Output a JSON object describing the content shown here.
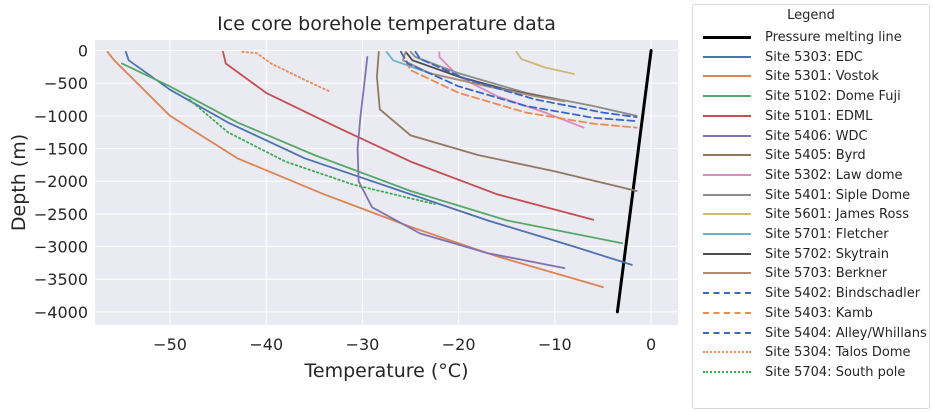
{
  "chart_data": {
    "type": "line",
    "title": "Ice core borehole temperature data",
    "xlabel": "Temperature (°C)",
    "ylabel": "Depth (m)",
    "xlim": [
      -57.8,
      2.8
    ],
    "ylim": [
      -4200,
      160
    ],
    "xticks": [
      -50,
      -40,
      -30,
      -20,
      -10,
      0
    ],
    "xtick_labels": [
      "−50",
      "−40",
      "−30",
      "−20",
      "−10",
      "0"
    ],
    "yticks": [
      0,
      -500,
      -1000,
      -1500,
      -2000,
      -2500,
      -3000,
      -3500,
      -4000
    ],
    "ytick_labels": [
      "0",
      "−500",
      "−1000",
      "−1500",
      "−2000",
      "−2500",
      "−3000",
      "−3500",
      "−4000"
    ],
    "grid": true,
    "legend": {
      "title": "Legend",
      "placement": "outside-right"
    },
    "series": [
      {
        "name": "Pressure melting line",
        "color": "#000000",
        "style": "solid",
        "bold": true,
        "points": [
          [
            0,
            0
          ],
          [
            -3.5,
            -4000
          ]
        ]
      },
      {
        "name": "Site 5303: EDC",
        "color": "#4c72b0",
        "style": "solid",
        "points": [
          [
            -54.6,
            -20
          ],
          [
            -54.3,
            -150
          ],
          [
            -50,
            -600
          ],
          [
            -44,
            -1100
          ],
          [
            -36,
            -1650
          ],
          [
            -26,
            -2150
          ],
          [
            -17,
            -2600
          ],
          [
            -8,
            -3000
          ],
          [
            -2,
            -3280
          ]
        ]
      },
      {
        "name": "Site 5301: Vostok",
        "color": "#dd8452",
        "style": "solid",
        "points": [
          [
            -56.5,
            -20
          ],
          [
            -55.8,
            -150
          ],
          [
            -50,
            -1000
          ],
          [
            -43,
            -1650
          ],
          [
            -34,
            -2200
          ],
          [
            -25,
            -2700
          ],
          [
            -16,
            -3150
          ],
          [
            -5,
            -3620
          ]
        ]
      },
      {
        "name": "Site 5102: Dome Fuji",
        "color": "#55a868",
        "style": "solid",
        "points": [
          [
            -55,
            -200
          ],
          [
            -50,
            -550
          ],
          [
            -43,
            -1100
          ],
          [
            -35,
            -1600
          ],
          [
            -25,
            -2150
          ],
          [
            -15,
            -2600
          ],
          [
            -3,
            -2950
          ]
        ]
      },
      {
        "name": "Site 5101: EDML",
        "color": "#c44e52",
        "style": "solid",
        "points": [
          [
            -44.5,
            -20
          ],
          [
            -44.2,
            -200
          ],
          [
            -40,
            -650
          ],
          [
            -33,
            -1150
          ],
          [
            -25,
            -1700
          ],
          [
            -16,
            -2200
          ],
          [
            -6,
            -2590
          ]
        ]
      },
      {
        "name": "Site 5406: WDC",
        "color": "#8172b3",
        "style": "solid",
        "points": [
          [
            -29.5,
            -100
          ],
          [
            -29.8,
            -500
          ],
          [
            -30.2,
            -1000
          ],
          [
            -30.5,
            -1500
          ],
          [
            -30.4,
            -2000
          ],
          [
            -29,
            -2400
          ],
          [
            -24,
            -2800
          ],
          [
            -17,
            -3100
          ],
          [
            -9,
            -3330
          ]
        ]
      },
      {
        "name": "Site 5405: Byrd",
        "color": "#937860",
        "style": "solid",
        "points": [
          [
            -28.3,
            -20
          ],
          [
            -28.5,
            -400
          ],
          [
            -28.2,
            -900
          ],
          [
            -25,
            -1300
          ],
          [
            -18,
            -1600
          ],
          [
            -10,
            -1850
          ],
          [
            -1.5,
            -2150
          ]
        ]
      },
      {
        "name": "Site 5302: Law dome",
        "color": "#da8bc3",
        "style": "solid",
        "points": [
          [
            -22,
            -30
          ],
          [
            -22,
            -100
          ],
          [
            -20,
            -400
          ],
          [
            -16,
            -700
          ],
          [
            -11,
            -950
          ],
          [
            -7,
            -1180
          ]
        ]
      },
      {
        "name": "Site 5401: Siple Dome",
        "color": "#8c8c8c",
        "style": "solid",
        "points": [
          [
            -25,
            -20
          ],
          [
            -24.5,
            -100
          ],
          [
            -20,
            -350
          ],
          [
            -13,
            -650
          ],
          [
            -6,
            -850
          ],
          [
            -1.5,
            -1000
          ]
        ]
      },
      {
        "name": "Site 5601: James Ross",
        "color": "#ccb974",
        "style": "solid",
        "points": [
          [
            -14,
            -20
          ],
          [
            -13.5,
            -130
          ],
          [
            -11,
            -260
          ],
          [
            -8,
            -360
          ]
        ]
      },
      {
        "name": "Site 5701: Fletcher",
        "color": "#64b5cd",
        "style": "solid",
        "points": [
          [
            -27.5,
            -20
          ],
          [
            -26.8,
            -150
          ],
          [
            -23,
            -350
          ],
          [
            -17,
            -550
          ],
          [
            -12,
            -700
          ]
        ]
      },
      {
        "name": "Site 5702: Skytrain",
        "color": "#4d4d4d",
        "style": "solid",
        "points": [
          [
            -25.5,
            -20
          ],
          [
            -24.8,
            -150
          ],
          [
            -20,
            -400
          ],
          [
            -15,
            -600
          ],
          [
            -10,
            -750
          ]
        ]
      },
      {
        "name": "Site 5703: Berkner",
        "color": "#b08b75",
        "style": "solid",
        "points": [
          [
            -25.5,
            -20
          ],
          [
            -25.8,
            -150
          ],
          [
            -23,
            -350
          ],
          [
            -17,
            -550
          ],
          [
            -12,
            -700
          ],
          [
            -9,
            -780
          ]
        ]
      },
      {
        "name": "Site 5402: Bindschadler",
        "color": "#3a69c4",
        "style": "dashed",
        "points": [
          [
            -24.5,
            -20
          ],
          [
            -24,
            -130
          ],
          [
            -19,
            -450
          ],
          [
            -12,
            -750
          ],
          [
            -5,
            -950
          ],
          [
            -1.5,
            -1020
          ]
        ]
      },
      {
        "name": "Site 5403: Kamb",
        "color": "#ed8a4e",
        "style": "dashed",
        "points": [
          [
            -26,
            -20
          ],
          [
            -25,
            -300
          ],
          [
            -20,
            -650
          ],
          [
            -13,
            -950
          ],
          [
            -6,
            -1120
          ],
          [
            -1.5,
            -1180
          ]
        ]
      },
      {
        "name": "Site 5404: Alley/Whillans",
        "color": "#3a69c4",
        "style": "dashed",
        "points": [
          [
            -26,
            -20
          ],
          [
            -25.3,
            -200
          ],
          [
            -20,
            -550
          ],
          [
            -13,
            -850
          ],
          [
            -6,
            -1030
          ],
          [
            -1.5,
            -1080
          ]
        ]
      },
      {
        "name": "Site 5304: Talos Dome",
        "color": "#ed8a4e",
        "style": "dotted",
        "points": [
          [
            -42.5,
            -20
          ],
          [
            -41,
            -40
          ],
          [
            -39.5,
            -200
          ],
          [
            -36,
            -450
          ],
          [
            -33.5,
            -620
          ]
        ]
      },
      {
        "name": "Site 5704: South pole",
        "color": "#3bab4f",
        "style": "dotted",
        "points": [
          [
            -48,
            -750
          ],
          [
            -44,
            -1250
          ],
          [
            -38,
            -1700
          ],
          [
            -31,
            -2050
          ],
          [
            -22.5,
            -2350
          ]
        ]
      }
    ]
  }
}
